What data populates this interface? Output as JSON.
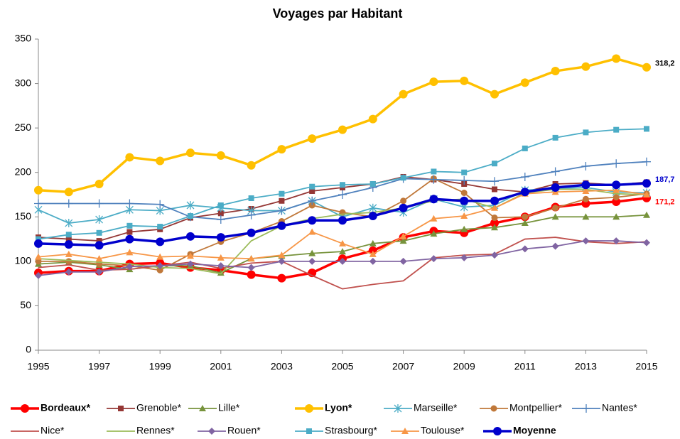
{
  "chart_data": {
    "type": "line",
    "title": "Voyages par Habitant",
    "x": [
      1995,
      1996,
      1997,
      1998,
      1999,
      2000,
      2001,
      2002,
      2003,
      2004,
      2005,
      2006,
      2007,
      2008,
      2009,
      2010,
      2011,
      2012,
      2013,
      2014,
      2015
    ],
    "xlim": [
      1995,
      2015
    ],
    "xticks": [
      1995,
      1997,
      1999,
      2001,
      2003,
      2005,
      2007,
      2009,
      2011,
      2013,
      2015
    ],
    "ylim": [
      0,
      350
    ],
    "yticks": [
      0,
      50,
      100,
      150,
      200,
      250,
      300,
      350
    ],
    "grid": false,
    "legend": "bottom",
    "series": [
      {
        "name": "Bordeaux*",
        "color": "#ff0000",
        "marker": "circle",
        "bold": true,
        "values": [
          87,
          89,
          89,
          97,
          98,
          93,
          90,
          85,
          81,
          87,
          103,
          112,
          127,
          134,
          132,
          143,
          150,
          161,
          165,
          167,
          171.2
        ],
        "value_labels": [
          null,
          null,
          null,
          null,
          null,
          null,
          null,
          null,
          null,
          null,
          null,
          null,
          null,
          null,
          null,
          null,
          null,
          null,
          null,
          null,
          "171,2"
        ]
      },
      {
        "name": "Grenoble*",
        "color": "#953735",
        "marker": "square",
        "bold": false,
        "values": [
          127,
          125,
          123,
          133,
          136,
          149,
          154,
          159,
          168,
          179,
          183,
          187,
          195,
          192,
          187,
          181,
          178,
          187,
          188,
          186,
          189
        ]
      },
      {
        "name": "Lille*",
        "color": "#77933c",
        "marker": "triangle",
        "bold": false,
        "values": [
          97,
          99,
          96,
          91,
          95,
          95,
          87,
          103,
          106,
          109,
          111,
          120,
          123,
          131,
          136,
          138,
          143,
          150,
          150,
          150,
          152
        ]
      },
      {
        "name": "Lyon*",
        "color": "#ffc000",
        "marker": "circle",
        "bold": true,
        "values": [
          180,
          178,
          187,
          217,
          213,
          222,
          219,
          208,
          226,
          238,
          248,
          260,
          288,
          302,
          303,
          288,
          301,
          314,
          319,
          328,
          318.2
        ],
        "value_labels": [
          null,
          null,
          null,
          null,
          null,
          null,
          null,
          null,
          null,
          null,
          null,
          null,
          null,
          null,
          null,
          null,
          null,
          null,
          null,
          null,
          "318,2"
        ],
        "value_label_color": "#000000"
      },
      {
        "name": "Marseille*",
        "color": "#4bacc6",
        "marker": "star",
        "bold": false,
        "values": [
          158,
          143,
          147,
          158,
          157,
          163,
          160,
          157,
          157,
          168,
          150,
          160,
          155,
          170,
          161,
          163,
          180,
          182,
          183,
          178,
          177
        ]
      },
      {
        "name": "Montpellier*",
        "color": "#c0783a",
        "marker": "circle-small",
        "bold": false,
        "values": [
          100,
          100,
          97,
          95,
          90,
          108,
          122,
          132,
          145,
          163,
          155,
          150,
          168,
          193,
          177,
          149,
          150,
          160,
          170,
          172,
          176
        ]
      },
      {
        "name": "Nantes*",
        "color": "#4f81bd",
        "marker": "plus",
        "bold": false,
        "values": [
          165,
          165,
          165,
          165,
          164,
          150,
          147,
          152,
          157,
          168,
          175,
          183,
          193,
          192,
          191,
          190,
          195,
          201,
          207,
          210,
          212
        ]
      },
      {
        "name": "Nice*",
        "color": "#c0504d",
        "marker": "none",
        "bold": false,
        "values": [
          93,
          96,
          90,
          91,
          95,
          99,
          92,
          98,
          100,
          84,
          69,
          74,
          78,
          104,
          107,
          108,
          125,
          127,
          122,
          120,
          122
        ]
      },
      {
        "name": "Rennes*",
        "color": "#9bbb59",
        "marker": "none",
        "bold": false,
        "values": [
          103,
          101,
          99,
          97,
          93,
          92,
          86,
          123,
          140,
          148,
          153,
          155,
          160,
          168,
          170,
          160,
          177,
          181,
          181,
          176,
          175
        ]
      },
      {
        "name": "Rouen*",
        "color": "#8064a2",
        "marker": "diamond",
        "bold": false,
        "values": [
          84,
          88,
          88,
          94,
          95,
          97,
          95,
          93,
          100,
          100,
          100,
          100,
          100,
          103,
          104,
          107,
          114,
          117,
          123,
          123,
          121
        ]
      },
      {
        "name": "Strasbourg*",
        "color": "#4bacc6",
        "marker": "square",
        "bold": false,
        "values": [
          125,
          130,
          132,
          140,
          139,
          151,
          163,
          171,
          176,
          184,
          186,
          187,
          194,
          201,
          200,
          210,
          227,
          239,
          245,
          248,
          249
        ]
      },
      {
        "name": "Toulouse*",
        "color": "#f79646",
        "marker": "triangle",
        "bold": false,
        "values": [
          105,
          108,
          103,
          110,
          105,
          106,
          104,
          103,
          107,
          133,
          120,
          108,
          128,
          148,
          151,
          160,
          176,
          178,
          179,
          180,
          175
        ]
      },
      {
        "name": "Moyenne",
        "color": "#0000cc",
        "marker": "circle",
        "bold": true,
        "values": [
          120,
          119,
          118,
          125,
          122,
          128,
          127,
          132,
          140,
          146,
          146,
          151,
          160,
          170,
          168,
          168,
          178,
          183,
          186,
          186,
          187.7
        ],
        "value_labels": [
          null,
          null,
          null,
          null,
          null,
          null,
          null,
          null,
          null,
          null,
          null,
          null,
          null,
          null,
          null,
          null,
          null,
          null,
          null,
          null,
          "187,7"
        ]
      }
    ]
  }
}
